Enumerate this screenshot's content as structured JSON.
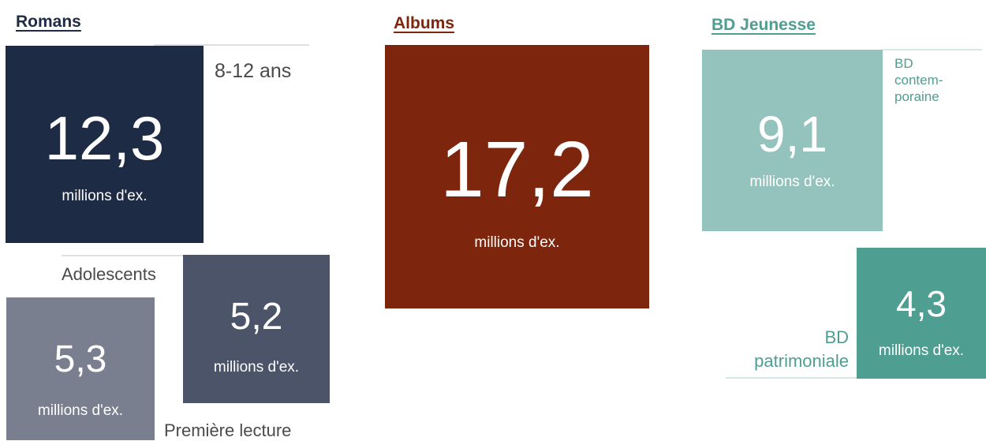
{
  "chart_data": [
    {
      "type": "treemap",
      "title": "Romans",
      "color": "#1e2b45",
      "unit": "millions d'ex.",
      "items": [
        {
          "name": "8-12 ans",
          "value": 12.3,
          "value_label": "12,3",
          "color": "#1e2b45"
        },
        {
          "name": "Adolescents",
          "value": 5.2,
          "value_label": "5,2",
          "color": "#4b5468"
        },
        {
          "name": "Première lecture",
          "value": 5.3,
          "value_label": "5,3",
          "color": "#797f8e"
        }
      ]
    },
    {
      "type": "treemap",
      "title": "Albums",
      "color": "#7d260d",
      "unit": "millions d'ex.",
      "items": [
        {
          "name": "",
          "value": 17.2,
          "value_label": "17,2",
          "color": "#7d260d"
        }
      ]
    },
    {
      "type": "treemap",
      "title": "BD Jeunesse",
      "color": "#4e9e91",
      "unit": "millions d'ex.",
      "items": [
        {
          "name": "BD contemporaine",
          "label_lines": [
            "BD",
            "contem-",
            "poraine"
          ],
          "value": 9.1,
          "value_label": "9,1",
          "color": "#94c3bd"
        },
        {
          "name": "BD patrimoniale",
          "label_lines": [
            "BD",
            "patrimoniale"
          ],
          "value": 4.3,
          "value_label": "4,3",
          "color": "#4e9e91"
        }
      ]
    }
  ]
}
